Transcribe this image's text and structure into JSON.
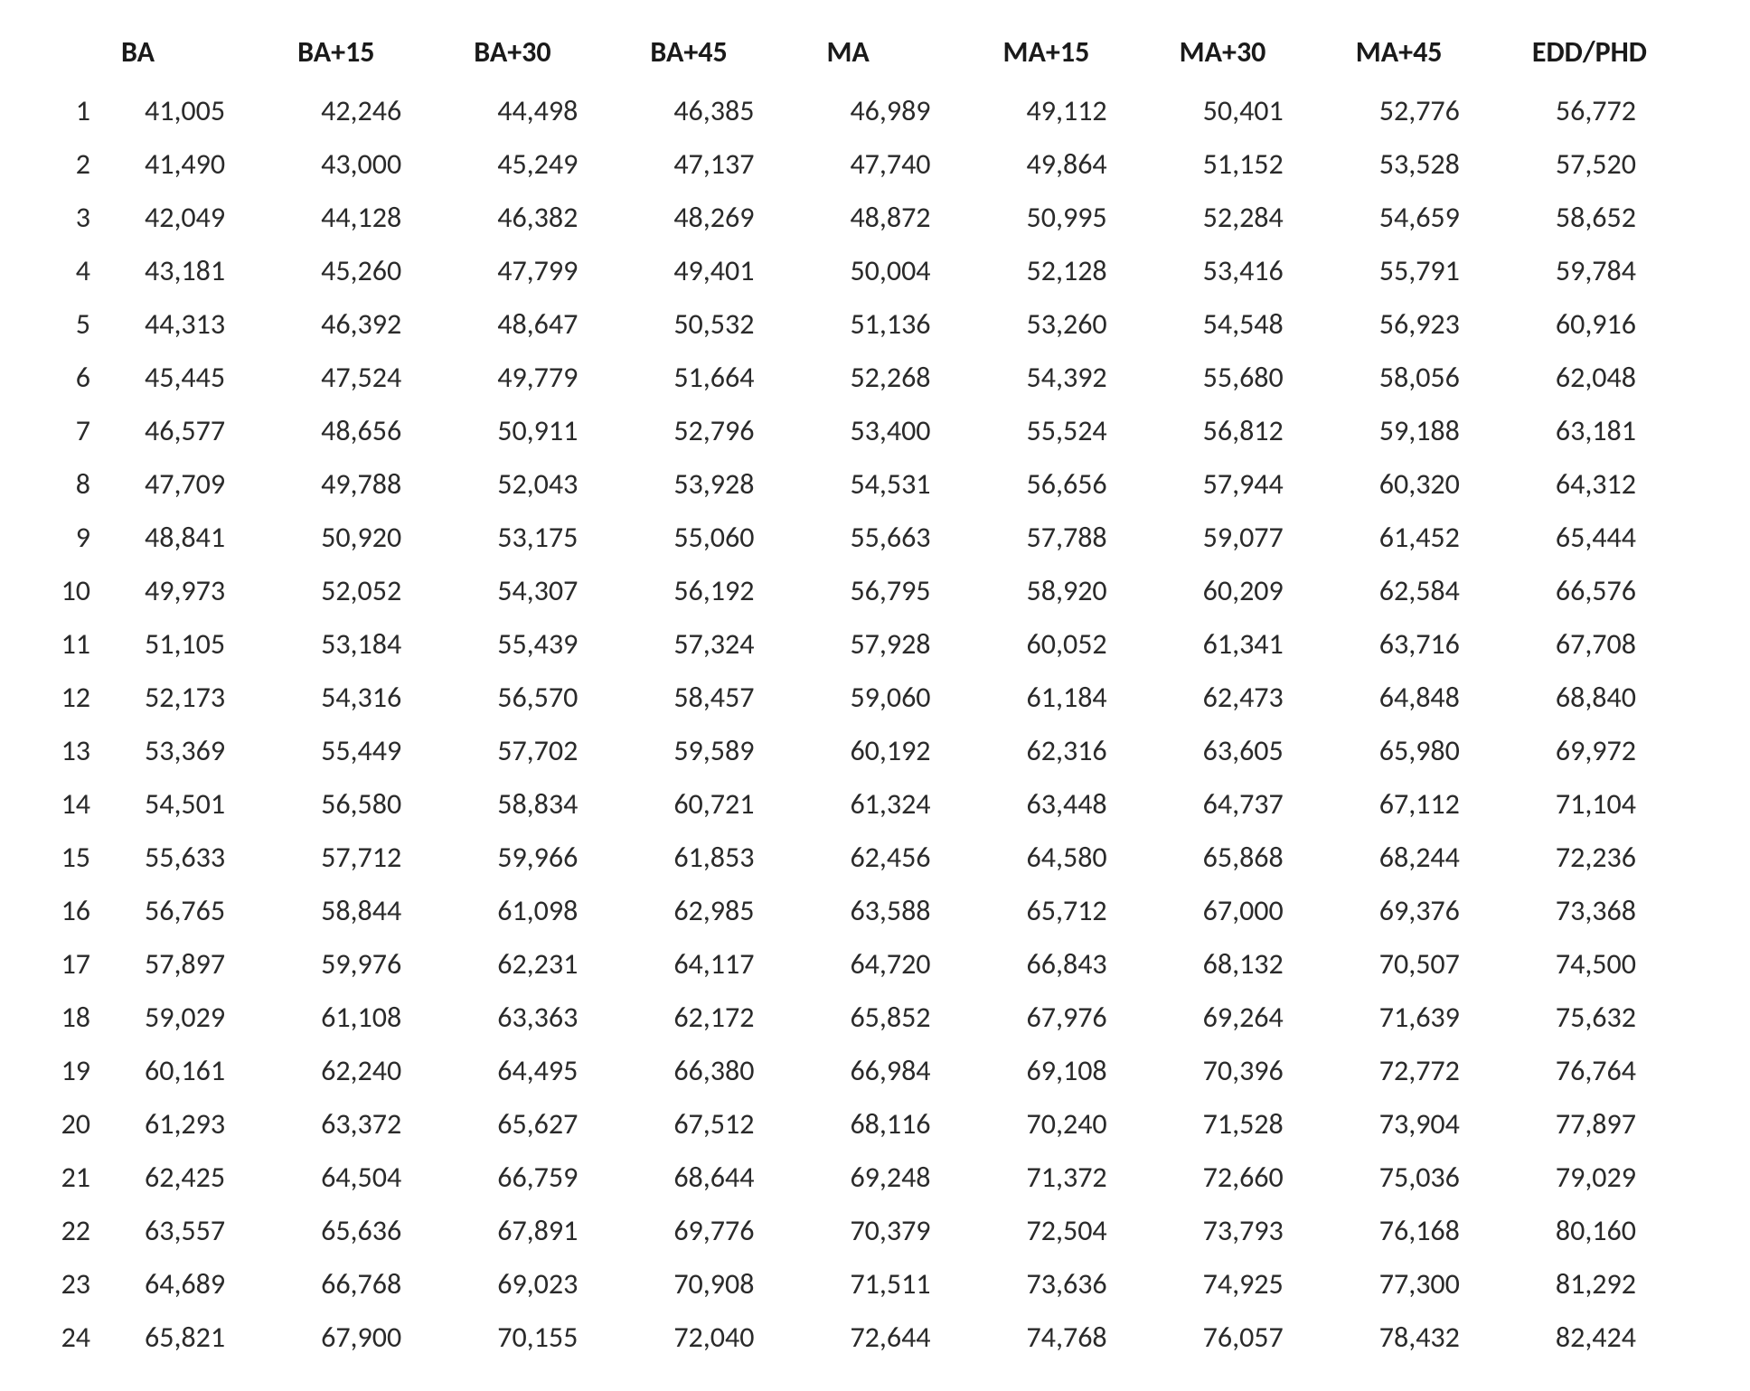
{
  "table": {
    "type": "table",
    "background_color": "#ffffff",
    "text_color": "#222222",
    "header_font_weight": 700,
    "body_font_weight": 400,
    "font_family": "Calibri",
    "font_size_pt": 24,
    "columns": [
      "",
      "BA",
      "BA+15",
      "BA+30",
      "BA+45",
      "MA",
      "MA+15",
      "MA+30",
      "MA+45",
      "EDD/PHD"
    ],
    "col_widths": [
      "80px",
      "1fr",
      "1fr",
      "1fr",
      "1fr",
      "1fr",
      "1fr",
      "1fr",
      "1fr",
      "1fr"
    ],
    "step_align": "right",
    "value_align": "left",
    "rows": [
      [
        "1",
        "41,005",
        "42,246",
        "44,498",
        "46,385",
        "46,989",
        "49,112",
        "50,401",
        "52,776",
        "56,772"
      ],
      [
        "2",
        "41,490",
        "43,000",
        "45,249",
        "47,137",
        "47,740",
        "49,864",
        "51,152",
        "53,528",
        "57,520"
      ],
      [
        "3",
        "42,049",
        "44,128",
        "46,382",
        "48,269",
        "48,872",
        "50,995",
        "52,284",
        "54,659",
        "58,652"
      ],
      [
        "4",
        "43,181",
        "45,260",
        "47,799",
        "49,401",
        "50,004",
        "52,128",
        "53,416",
        "55,791",
        "59,784"
      ],
      [
        "5",
        "44,313",
        "46,392",
        "48,647",
        "50,532",
        "51,136",
        "53,260",
        "54,548",
        "56,923",
        "60,916"
      ],
      [
        "6",
        "45,445",
        "47,524",
        "49,779",
        "51,664",
        "52,268",
        "54,392",
        "55,680",
        "58,056",
        "62,048"
      ],
      [
        "7",
        "46,577",
        "48,656",
        "50,911",
        "52,796",
        "53,400",
        "55,524",
        "56,812",
        "59,188",
        "63,181"
      ],
      [
        "8",
        "47,709",
        "49,788",
        "52,043",
        "53,928",
        "54,531",
        "56,656",
        "57,944",
        "60,320",
        "64,312"
      ],
      [
        "9",
        "48,841",
        "50,920",
        "53,175",
        "55,060",
        "55,663",
        "57,788",
        "59,077",
        "61,452",
        "65,444"
      ],
      [
        "10",
        "49,973",
        "52,052",
        "54,307",
        "56,192",
        "56,795",
        "58,920",
        "60,209",
        "62,584",
        "66,576"
      ],
      [
        "11",
        "51,105",
        "53,184",
        "55,439",
        "57,324",
        "57,928",
        "60,052",
        "61,341",
        "63,716",
        "67,708"
      ],
      [
        "12",
        "52,173",
        "54,316",
        "56,570",
        "58,457",
        "59,060",
        "61,184",
        "62,473",
        "64,848",
        "68,840"
      ],
      [
        "13",
        "53,369",
        "55,449",
        "57,702",
        "59,589",
        "60,192",
        "62,316",
        "63,605",
        "65,980",
        "69,972"
      ],
      [
        "14",
        "54,501",
        "56,580",
        "58,834",
        "60,721",
        "61,324",
        "63,448",
        "64,737",
        "67,112",
        "71,104"
      ],
      [
        "15",
        "55,633",
        "57,712",
        "59,966",
        "61,853",
        "62,456",
        "64,580",
        "65,868",
        "68,244",
        "72,236"
      ],
      [
        "16",
        "56,765",
        "58,844",
        "61,098",
        "62,985",
        "63,588",
        "65,712",
        "67,000",
        "69,376",
        "73,368"
      ],
      [
        "17",
        "57,897",
        "59,976",
        "62,231",
        "64,117",
        "64,720",
        "66,843",
        "68,132",
        "70,507",
        "74,500"
      ],
      [
        "18",
        "59,029",
        "61,108",
        "63,363",
        "62,172",
        "65,852",
        "67,976",
        "69,264",
        "71,639",
        "75,632"
      ],
      [
        "19",
        "60,161",
        "62,240",
        "64,495",
        "66,380",
        "66,984",
        "69,108",
        "70,396",
        "72,772",
        "76,764"
      ],
      [
        "20",
        "61,293",
        "63,372",
        "65,627",
        "67,512",
        "68,116",
        "70,240",
        "71,528",
        "73,904",
        "77,897"
      ],
      [
        "21",
        "62,425",
        "64,504",
        "66,759",
        "68,644",
        "69,248",
        "71,372",
        "72,660",
        "75,036",
        "79,029"
      ],
      [
        "22",
        "63,557",
        "65,636",
        "67,891",
        "69,776",
        "70,379",
        "72,504",
        "73,793",
        "76,168",
        "80,160"
      ],
      [
        "23",
        "64,689",
        "66,768",
        "69,023",
        "70,908",
        "71,511",
        "73,636",
        "74,925",
        "77,300",
        "81,292"
      ],
      [
        "24",
        "65,821",
        "67,900",
        "70,155",
        "72,040",
        "72,644",
        "74,768",
        "76,057",
        "78,432",
        "82,424"
      ]
    ]
  }
}
